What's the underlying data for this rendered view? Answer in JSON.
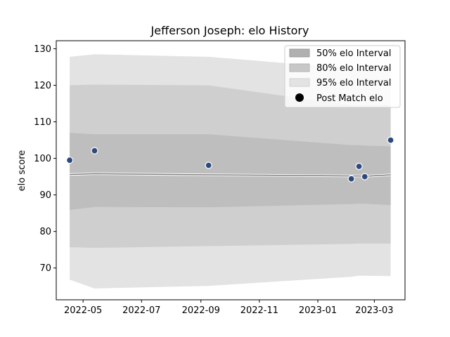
{
  "chart_data": {
    "type": "area",
    "title": "Jefferson Joseph: elo History",
    "xlabel": "",
    "ylabel": "elo score",
    "xlim": [
      "2022-04-03",
      "2023-04-02"
    ],
    "ylim": [
      61.3,
      132.2
    ],
    "x_ticks": [
      "2022-05",
      "2022-07",
      "2022-09",
      "2022-11",
      "2023-01",
      "2023-03"
    ],
    "y_ticks": [
      70,
      80,
      90,
      100,
      110,
      120,
      130
    ],
    "grid": false,
    "legend_position": "top-right",
    "x": [
      "2022-04-17",
      "2022-05-13",
      "2022-09-09",
      "2023-02-05",
      "2023-02-13",
      "2023-02-19",
      "2023-03-18"
    ],
    "band_95": {
      "name": "95% elo Interval",
      "upper": [
        127.8,
        128.5,
        127.8,
        124.6,
        124.6,
        124.6,
        124.6
      ],
      "lower": [
        66.8,
        64.4,
        65.1,
        67.6,
        67.9,
        67.9,
        67.8
      ]
    },
    "band_80": {
      "name": "80% elo Interval",
      "upper": [
        120.0,
        120.2,
        120.0,
        114.5,
        114.5,
        114.5,
        114.5
      ],
      "lower": [
        75.7,
        75.5,
        76.0,
        76.6,
        76.7,
        76.7,
        76.7
      ]
    },
    "band_50": {
      "name": "50% elo Interval",
      "upper": [
        107.0,
        106.6,
        106.6,
        103.6,
        103.6,
        103.5,
        103.3
      ],
      "lower": [
        85.9,
        86.7,
        86.6,
        87.5,
        87.6,
        87.6,
        87.2
      ]
    },
    "mean_line": [
      95.6,
      95.8,
      95.5,
      95.2,
      95.2,
      95.1,
      95.5
    ],
    "post_match": {
      "name": "Post Match elo",
      "x": [
        "2022-04-17",
        "2022-05-13",
        "2022-09-09",
        "2023-02-05",
        "2023-02-13",
        "2023-02-19",
        "2023-03-18"
      ],
      "y": [
        99.5,
        102.1,
        98.1,
        94.4,
        97.8,
        95.0,
        105.0
      ]
    },
    "colors": {
      "band_95": "#e3e3e3",
      "band_80": "#cfcfcf",
      "band_50": "#bebebe",
      "mean_line": "#808080",
      "points": "#2e4a7d"
    }
  }
}
